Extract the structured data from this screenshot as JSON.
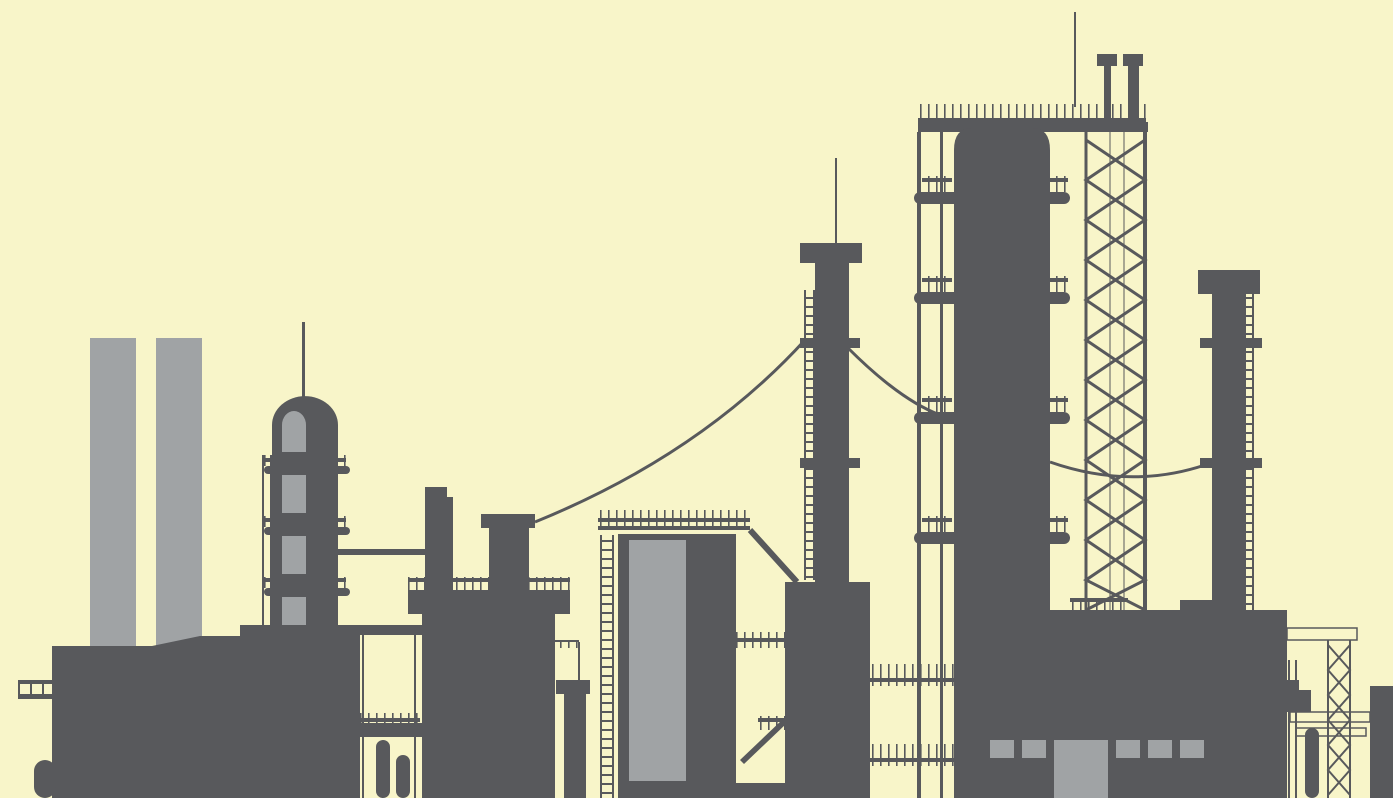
{
  "scene": {
    "subject": "industrial-refinery-skyline",
    "colors": {
      "sky": "#f8f5c9",
      "structure": "#58595c",
      "highlight": "#a0a3a5"
    }
  }
}
